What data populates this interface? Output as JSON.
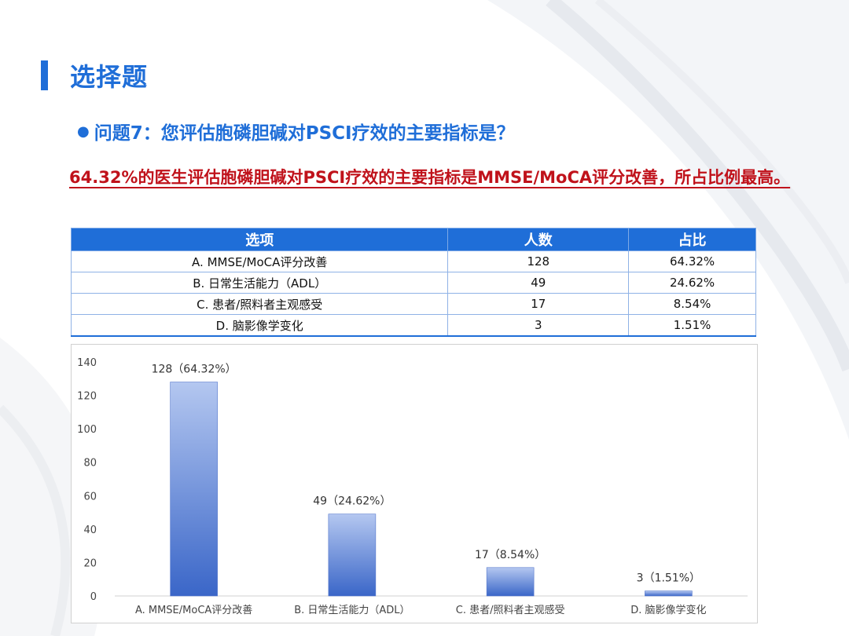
{
  "slide": {
    "title": "选择题",
    "question": "问题7：您评估胞磷胆碱对PSCI疗效的主要指标是？",
    "finding": "64.32%的医生评估胞磷胆碱对PSCI疗效的主要指标是MMSE/MoCA评分改善，所占比例最高。"
  },
  "table": {
    "headers": [
      "选项",
      "人数",
      "占比"
    ],
    "rows": [
      {
        "option": "A. MMSE/MoCA评分改善",
        "count": "128",
        "percent": "64.32%"
      },
      {
        "option": "B. 日常生活能力（ADL）",
        "count": "49",
        "percent": "24.62%"
      },
      {
        "option": "C. 患者/照料者主观感受",
        "count": "17",
        "percent": "8.54%"
      },
      {
        "option": "D. 脑影像学变化",
        "count": "3",
        "percent": "1.51%"
      }
    ]
  },
  "colors": {
    "accent": "#1f6ed8",
    "highlight": "#c0121b",
    "bar_top": "#b4c7f0",
    "bar_bottom": "#3a66c8"
  },
  "chart_data": {
    "type": "bar",
    "categories": [
      "A. MMSE/MoCA评分改善",
      "B. 日常生活能力（ADL）",
      "C. 患者/照料者主观感受",
      "D. 脑影像学变化"
    ],
    "values": [
      128,
      49,
      17,
      3
    ],
    "data_labels": [
      "128（64.32%）",
      "49（24.62%）",
      "17（8.54%）",
      "3（1.51%）"
    ],
    "yticks": [
      0,
      20,
      40,
      60,
      80,
      100,
      120,
      140
    ],
    "ylim": [
      0,
      140
    ],
    "grid": false,
    "legend": "none"
  }
}
